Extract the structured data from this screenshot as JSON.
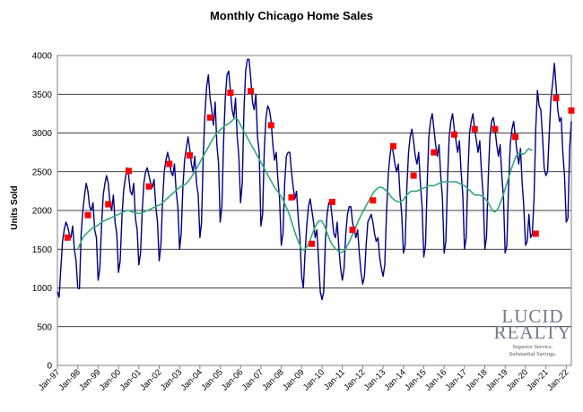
{
  "chart_data": {
    "type": "line",
    "title": "Monthly Chicago Home Sales",
    "ylabel": "Units Sold",
    "xlabel": "",
    "ylim": [
      0,
      4000
    ],
    "yticks": [
      0,
      500,
      1000,
      1500,
      2000,
      2500,
      3000,
      3500,
      4000
    ],
    "grid": true,
    "x_tick_labels": [
      "Jan-97",
      "Jan-98",
      "Jan-99",
      "Jan-00",
      "Jan-01",
      "Jan-02",
      "Jan-03",
      "Jan-04",
      "Jan-05",
      "Jan-06",
      "Jan-07",
      "Jan-08",
      "Jan-09",
      "Jan-10",
      "Jan-11",
      "Jan-12",
      "Jan-13",
      "Jan-14",
      "Jan-15",
      "Jan-16",
      "Jan-17",
      "Jan-18",
      "Jan-19",
      "Jan-20",
      "Jan-21",
      "Jan-22"
    ],
    "series": [
      {
        "type": "line",
        "color": "#000080",
        "x_start": "1997-01",
        "values": [
          950,
          880,
          1250,
          1600,
          1750,
          1850,
          1800,
          1700,
          1650,
          1800,
          1500,
          1350,
          1000,
          990,
          1700,
          2000,
          2200,
          2350,
          2250,
          2050,
          2000,
          2100,
          1750,
          1650,
          1100,
          1250,
          1800,
          2200,
          2350,
          2450,
          2350,
          2100,
          2000,
          2200,
          1850,
          1700,
          1200,
          1350,
          1900,
          2250,
          2400,
          2550,
          2450,
          2250,
          2200,
          2350,
          1900,
          1750,
          1300,
          1450,
          2000,
          2350,
          2500,
          2550,
          2450,
          2350,
          2300,
          2400,
          2050,
          1850,
          1350,
          1550,
          2100,
          2500,
          2650,
          2750,
          2650,
          2500,
          2450,
          2600,
          2250,
          2050,
          1500,
          1700,
          2300,
          2650,
          2800,
          2950,
          2800,
          2600,
          2500,
          2700,
          2350,
          2200,
          1650,
          1850,
          2700,
          3250,
          3600,
          3750,
          3450,
          3300,
          3100,
          3400,
          2850,
          2600,
          1850,
          2050,
          2900,
          3450,
          3750,
          3800,
          3550,
          3300,
          3200,
          3450,
          2950,
          2700,
          2100,
          2350,
          3300,
          3800,
          3950,
          3950,
          3700,
          3400,
          3300,
          3500,
          2950,
          2750,
          1800,
          1950,
          2800,
          3200,
          3350,
          3300,
          3150,
          2850,
          2650,
          2750,
          2400,
          2150,
          1550,
          1700,
          2350,
          2700,
          2750,
          2750,
          2500,
          2300,
          2150,
          2250,
          1900,
          1650,
          1150,
          1000,
          1450,
          1800,
          2050,
          2150,
          2000,
          1850,
          1650,
          1750,
          1350,
          950,
          850,
          950,
          1600,
          1950,
          2100,
          2100,
          1900,
          1700,
          1650,
          1850,
          1500,
          1250,
          1100,
          1250,
          1700,
          1950,
          2050,
          2050,
          1850,
          1750,
          1650,
          1750,
          1450,
          1200,
          1050,
          1150,
          1550,
          1850,
          1900,
          1950,
          1850,
          1700,
          1600,
          1650,
          1400,
          1250,
          1150,
          1300,
          1950,
          2450,
          2700,
          2850,
          2750,
          2600,
          2500,
          2600,
          2200,
          1950,
          1450,
          1550,
          2300,
          2750,
          2950,
          3050,
          2900,
          2700,
          2600,
          2750,
          2350,
          2050,
          1400,
          1550,
          2350,
          2950,
          3150,
          3250,
          3050,
          2850,
          2700,
          2850,
          2450,
          2150,
          1450,
          1600,
          2400,
          2950,
          3150,
          3250,
          3050,
          2900,
          2750,
          2900,
          2500,
          2200,
          1500,
          1650,
          2450,
          3000,
          3150,
          3250,
          3050,
          2900,
          2750,
          2900,
          2500,
          2200,
          1500,
          1650,
          2400,
          2950,
          3150,
          3200,
          3050,
          2850,
          2700,
          2850,
          2450,
          2150,
          1450,
          1550,
          2300,
          2850,
          3050,
          3150,
          2950,
          2750,
          2600,
          2800,
          2350,
          2050,
          1550,
          1600,
          1950,
          1650,
          1700,
          2150,
          3050,
          3550,
          3350,
          3300,
          2950,
          2550,
          2450,
          2500,
          3000,
          3450,
          3650,
          3900,
          3600,
          3300,
          3150,
          3200,
          2750,
          2450,
          1850,
          1900,
          2800,
          3150
        ]
      },
      {
        "type": "moving-average",
        "color": "#33aa77",
        "x_start": "1998-01",
        "values": [
          1500,
          1550,
          1600,
          1650,
          1680,
          1700,
          1720,
          1740,
          1760,
          1780,
          1790,
          1800,
          1810,
          1830,
          1850,
          1860,
          1870,
          1880,
          1890,
          1900,
          1910,
          1920,
          1930,
          1940,
          1950,
          1960,
          1970,
          1980,
          1990,
          2000,
          2000,
          1990,
          1980,
          1975,
          1970,
          1965,
          1960,
          1965,
          1970,
          1980,
          1990,
          2000,
          2010,
          2020,
          2030,
          2040,
          2050,
          2060,
          2070,
          2080,
          2100,
          2120,
          2140,
          2160,
          2180,
          2200,
          2220,
          2240,
          2260,
          2280,
          2300,
          2310,
          2320,
          2330,
          2350,
          2370,
          2400,
          2430,
          2470,
          2500,
          2540,
          2580,
          2620,
          2660,
          2700,
          2740,
          2780,
          2820,
          2860,
          2900,
          2940,
          2970,
          3000,
          3020,
          3040,
          3060,
          3080,
          3100,
          3110,
          3120,
          3140,
          3160,
          3180,
          3190,
          3180,
          3150,
          3100,
          3060,
          3020,
          2980,
          2940,
          2900,
          2860,
          2820,
          2780,
          2740,
          2700,
          2660,
          2620,
          2580,
          2540,
          2500,
          2460,
          2420,
          2380,
          2340,
          2300,
          2270,
          2240,
          2210,
          2180,
          2140,
          2090,
          2040,
          1990,
          1930,
          1860,
          1790,
          1720,
          1660,
          1600,
          1550,
          1500,
          1490,
          1500,
          1530,
          1570,
          1620,
          1680,
          1740,
          1790,
          1830,
          1860,
          1870,
          1860,
          1820,
          1770,
          1710,
          1650,
          1600,
          1560,
          1530,
          1510,
          1490,
          1470,
          1460,
          1460,
          1480,
          1510,
          1550,
          1590,
          1640,
          1690,
          1740,
          1790,
          1840,
          1890,
          1940,
          1980,
          2020,
          2060,
          2100,
          2140,
          2180,
          2220,
          2250,
          2270,
          2290,
          2300,
          2300,
          2290,
          2270,
          2250,
          2230,
          2200,
          2170,
          2150,
          2130,
          2120,
          2110,
          2110,
          2120,
          2140,
          2170,
          2200,
          2220,
          2240,
          2250,
          2250,
          2250,
          2250,
          2260,
          2270,
          2280,
          2290,
          2300,
          2310,
          2320,
          2320,
          2320,
          2320,
          2330,
          2340,
          2350,
          2360,
          2370,
          2370,
          2370,
          2370,
          2370,
          2370,
          2370,
          2370,
          2370,
          2360,
          2350,
          2340,
          2330,
          2320,
          2300,
          2280,
          2260,
          2240,
          2220,
          2200,
          2200,
          2200,
          2200,
          2190,
          2180,
          2160,
          2130,
          2100,
          2060,
          2020,
          1990,
          1980,
          2000,
          2040,
          2090,
          2150,
          2210,
          2280,
          2350,
          2420,
          2490,
          2560,
          2620,
          2680,
          2720,
          2740,
          2740,
          2730,
          2730,
          2750,
          2780,
          2800,
          2780,
          2780
        ]
      },
      {
        "type": "scatter",
        "marker": "square",
        "color": "#ff0000",
        "points": [
          {
            "x": "1997-07",
            "y": 1650
          },
          {
            "x": "1998-07",
            "y": 1940
          },
          {
            "x": "1999-07",
            "y": 2080
          },
          {
            "x": "2000-07",
            "y": 2510
          },
          {
            "x": "2001-07",
            "y": 2310
          },
          {
            "x": "2002-07",
            "y": 2600
          },
          {
            "x": "2003-07",
            "y": 2710
          },
          {
            "x": "2004-07",
            "y": 3200
          },
          {
            "x": "2005-07",
            "y": 3520
          },
          {
            "x": "2006-07",
            "y": 3540
          },
          {
            "x": "2007-07",
            "y": 3100
          },
          {
            "x": "2008-07",
            "y": 2170
          },
          {
            "x": "2009-07",
            "y": 1570
          },
          {
            "x": "2010-07",
            "y": 2110
          },
          {
            "x": "2011-07",
            "y": 1750
          },
          {
            "x": "2012-07",
            "y": 2130
          },
          {
            "x": "2013-07",
            "y": 2830
          },
          {
            "x": "2014-07",
            "y": 2450
          },
          {
            "x": "2015-07",
            "y": 2750
          },
          {
            "x": "2016-07",
            "y": 2980
          },
          {
            "x": "2017-07",
            "y": 3050
          },
          {
            "x": "2018-07",
            "y": 3050
          },
          {
            "x": "2019-07",
            "y": 2950
          },
          {
            "x": "2020-07",
            "y": 1700
          },
          {
            "x": "2021-07",
            "y": 3450
          },
          {
            "x": "2022-04",
            "y": 3290
          }
        ]
      }
    ]
  },
  "logo": {
    "line1": "LUCID",
    "line2": "REALTY",
    "tagline1": "Superior Service.",
    "tagline2": "Substantial Savings."
  }
}
